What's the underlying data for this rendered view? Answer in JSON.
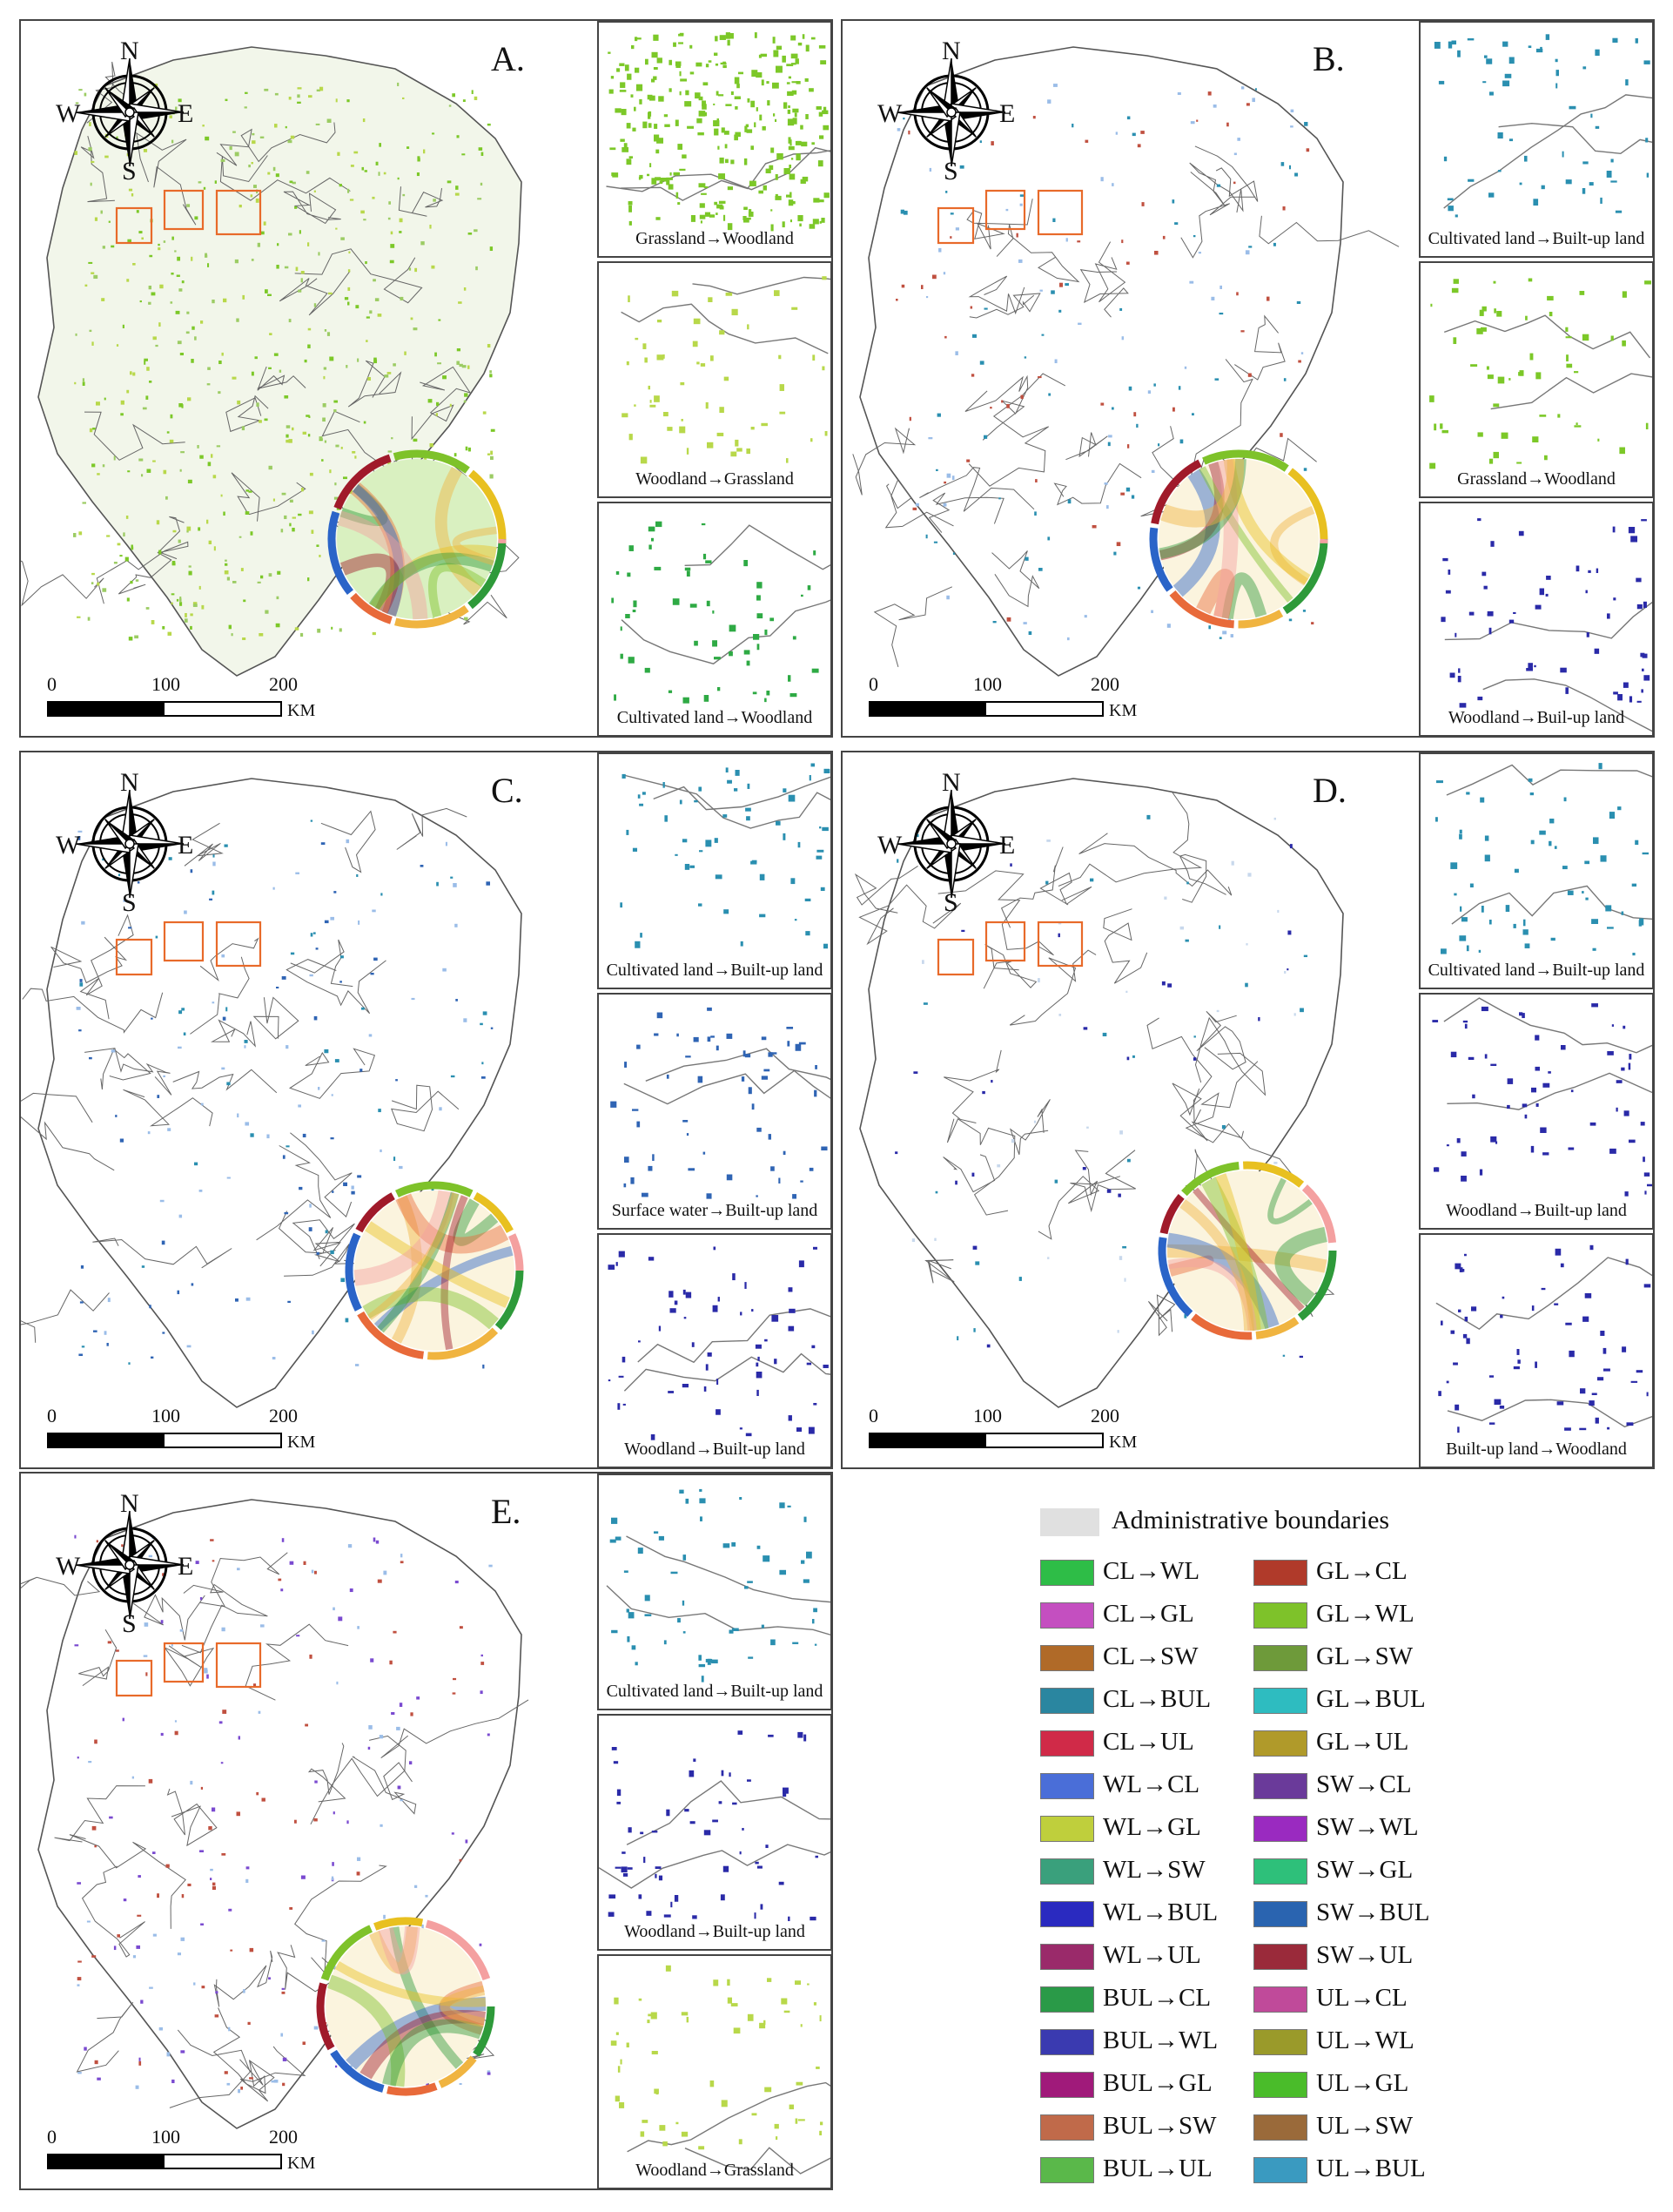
{
  "compass": {
    "n": "N",
    "s": "S",
    "e": "E",
    "w": "W"
  },
  "scale": {
    "t0": "0",
    "t1": "100",
    "t2": "200",
    "unit": "KM"
  },
  "panels": [
    {
      "letter": "A.",
      "insets": [
        {
          "caption": "Grassland→Woodland",
          "color": "#7cc828"
        },
        {
          "caption": "Woodland→Grassland",
          "color": "#b8d84a"
        },
        {
          "caption": "Cultivated land→Woodland",
          "color": "#2eaa44"
        }
      ]
    },
    {
      "letter": "B.",
      "insets": [
        {
          "caption": "Cultivated land→Built-up land",
          "color": "#2a8fb0"
        },
        {
          "caption": "Grassland→Woodland",
          "color": "#7cc828"
        },
        {
          "caption": "Woodland→Buil-up land",
          "color": "#2a2aa8"
        }
      ]
    },
    {
      "letter": "C.",
      "insets": [
        {
          "caption": "Cultivated land→Built-up land",
          "color": "#2a8fb0"
        },
        {
          "caption": "Surface water→Built-up land",
          "color": "#2f64b4"
        },
        {
          "caption": "Woodland→Built-up land",
          "color": "#2a2aa8"
        }
      ]
    },
    {
      "letter": "D.",
      "insets": [
        {
          "caption": "Cultivated land→Built-up land",
          "color": "#2a8fb0"
        },
        {
          "caption": "Woodland→Built-up land",
          "color": "#2a2aa8"
        },
        {
          "caption": "Built-up land→Woodland",
          "color": "#2a2aa8"
        }
      ]
    },
    {
      "letter": "E.",
      "insets": [
        {
          "caption": "Cultivated land→Built-up land",
          "color": "#2a8fb0"
        },
        {
          "caption": "Woodland→Built-up land",
          "color": "#2a2aa8"
        },
        {
          "caption": "Woodland→Grassland",
          "color": "#b8d84a"
        }
      ]
    }
  ],
  "legend": {
    "admin": "Administrative boundaries",
    "col1": [
      {
        "label": "CL→WL",
        "color": "#2ebd47"
      },
      {
        "label": "CL→GL",
        "color": "#c44fc0"
      },
      {
        "label": "CL→SW",
        "color": "#b06a28"
      },
      {
        "label": "CL→BUL",
        "color": "#2a86a0"
      },
      {
        "label": "CL→UL",
        "color": "#d02a48"
      },
      {
        "label": "WL→CL",
        "color": "#4a6ed8"
      },
      {
        "label": "WL→GL",
        "color": "#bfcf3c"
      },
      {
        "label": "WL→SW",
        "color": "#3aa07c"
      },
      {
        "label": "WL→BUL",
        "color": "#2a2ac0"
      },
      {
        "label": "WL→UL",
        "color": "#9a2a6a"
      },
      {
        "label": "BUL→CL",
        "color": "#2a9a48"
      },
      {
        "label": "BUL→WL",
        "color": "#3a3ab0"
      },
      {
        "label": "BUL→GL",
        "color": "#a01a7a"
      },
      {
        "label": "BUL→SW",
        "color": "#c06a4a"
      },
      {
        "label": "BUL→UL",
        "color": "#5ab84a"
      }
    ],
    "col2": [
      {
        "label": "GL→CL",
        "color": "#b03a2a"
      },
      {
        "label": "GL→WL",
        "color": "#7ec22a"
      },
      {
        "label": "GL→SW",
        "color": "#6e9a3a"
      },
      {
        "label": "GL→BUL",
        "color": "#2ebcc0"
      },
      {
        "label": "GL→UL",
        "color": "#b09a2a"
      },
      {
        "label": "SW→CL",
        "color": "#6a3a9a"
      },
      {
        "label": "SW→WL",
        "color": "#9a2ac0"
      },
      {
        "label": "SW→GL",
        "color": "#2ec07a"
      },
      {
        "label": "SW→BUL",
        "color": "#2a64b0"
      },
      {
        "label": "SW→UL",
        "color": "#9a2a3a"
      },
      {
        "label": "UL→CL",
        "color": "#c04a9a"
      },
      {
        "label": "UL→WL",
        "color": "#9a9a2a"
      },
      {
        "label": "UL→GL",
        "color": "#4abc2a"
      },
      {
        "label": "UL→SW",
        "color": "#9a6a3a"
      },
      {
        "label": "UL→BUL",
        "color": "#3a9ac0"
      }
    ]
  }
}
